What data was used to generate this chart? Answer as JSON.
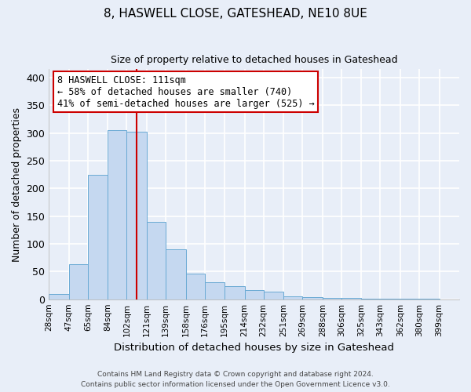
{
  "title1": "8, HASWELL CLOSE, GATESHEAD, NE10 8UE",
  "title2": "Size of property relative to detached houses in Gateshead",
  "xlabel": "Distribution of detached houses by size in Gateshead",
  "ylabel": "Number of detached properties",
  "bar_color": "#c5d8f0",
  "bar_edge_color": "#6aaad4",
  "vline_x": 111,
  "vline_color": "#cc0000",
  "categories": [
    "28sqm",
    "47sqm",
    "65sqm",
    "84sqm",
    "102sqm",
    "121sqm",
    "139sqm",
    "158sqm",
    "176sqm",
    "195sqm",
    "214sqm",
    "232sqm",
    "251sqm",
    "269sqm",
    "288sqm",
    "306sqm",
    "325sqm",
    "343sqm",
    "362sqm",
    "380sqm",
    "399sqm"
  ],
  "bin_edges": [
    28,
    47,
    65,
    84,
    102,
    121,
    139,
    158,
    176,
    195,
    214,
    232,
    251,
    269,
    288,
    306,
    325,
    343,
    362,
    380,
    399
  ],
  "values": [
    10,
    63,
    224,
    305,
    303,
    140,
    90,
    46,
    31,
    23,
    16,
    13,
    5,
    4,
    3,
    2,
    1,
    1,
    1,
    1
  ],
  "ylim": [
    0,
    415
  ],
  "yticks": [
    0,
    50,
    100,
    150,
    200,
    250,
    300,
    350,
    400
  ],
  "annotation_title": "8 HASWELL CLOSE: 111sqm",
  "annotation_line1": "← 58% of detached houses are smaller (740)",
  "annotation_line2": "41% of semi-detached houses are larger (525) →",
  "annotation_box_color": "#ffffff",
  "annotation_box_edge": "#cc0000",
  "footer1": "Contains HM Land Registry data © Crown copyright and database right 2024.",
  "footer2": "Contains public sector information licensed under the Open Government Licence v3.0.",
  "background_color": "#e8eef8",
  "grid_color": "#ffffff"
}
